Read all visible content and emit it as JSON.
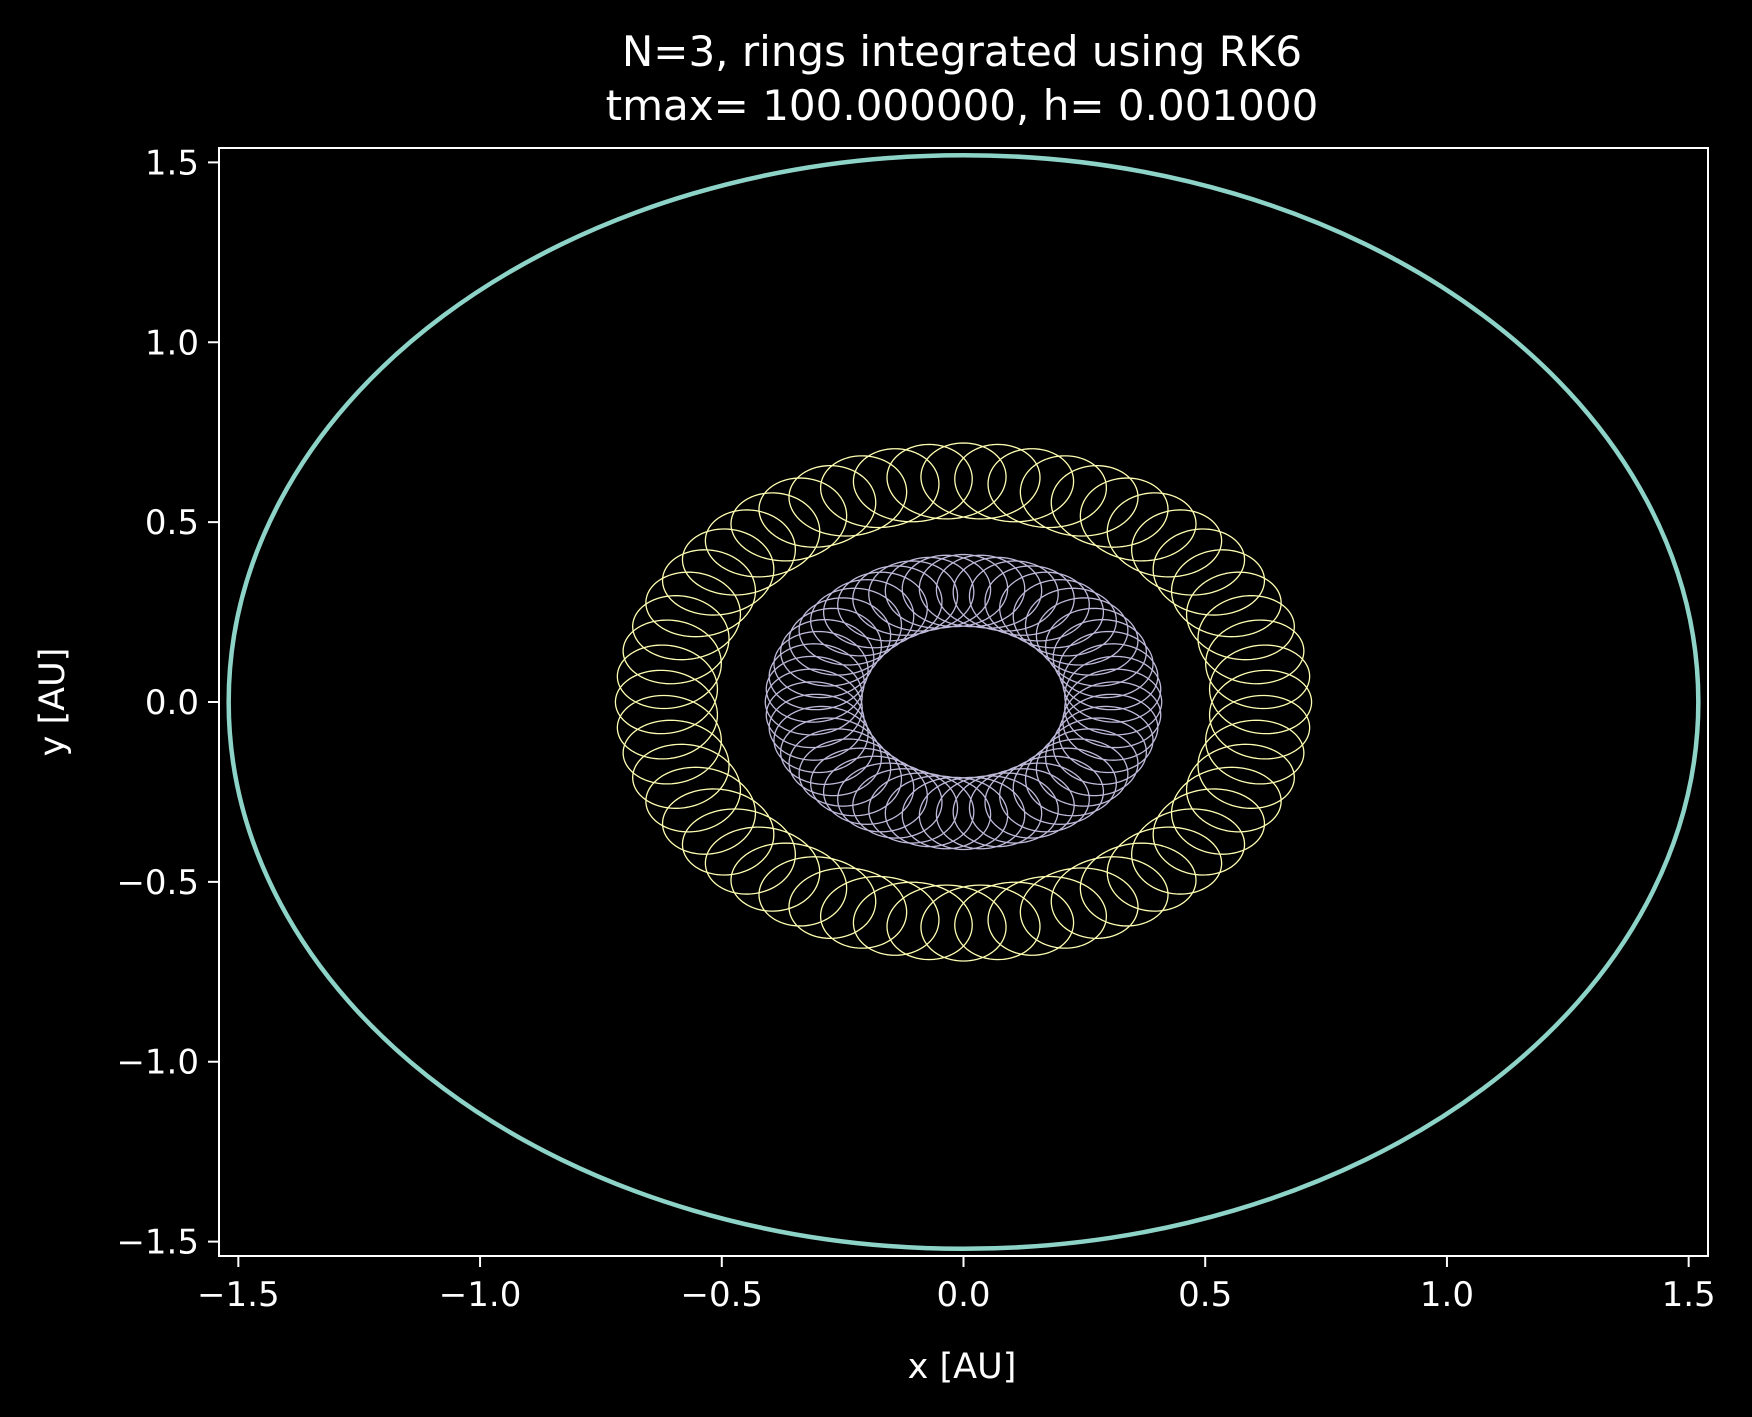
{
  "chart_data": {
    "type": "line",
    "title": "N=3, rings integrated using RK6",
    "subtitle": "tmax= 100.000000, h= 0.001000",
    "xlabel": "x [AU]",
    "ylabel": "y [AU]",
    "xlim": [
      -1.54,
      1.54
    ],
    "ylim": [
      -1.54,
      1.54
    ],
    "xticks": [
      -1.5,
      -1.0,
      -0.5,
      0.0,
      0.5,
      1.0,
      1.5
    ],
    "yticks": [
      -1.5,
      -1.0,
      -0.5,
      0.0,
      0.5,
      1.0,
      1.5
    ],
    "xtick_labels": [
      "−1.5",
      "−1.0",
      "−0.5",
      "0.0",
      "0.5",
      "1.0",
      "1.5"
    ],
    "ytick_labels": [
      "−1.5",
      "−1.0",
      "−0.5",
      "0.0",
      "0.5",
      "1.0",
      "1.5"
    ],
    "grid": false,
    "legend": "none",
    "background": "#000000",
    "series": [
      {
        "color": "#8dd3c7",
        "orbit": "circle",
        "radius": 1.52
      },
      {
        "color": "#ffffb3",
        "orbit": "rosette",
        "r_min": 0.51,
        "r_max": 0.72,
        "petals": 55
      },
      {
        "color": "#bebada",
        "orbit": "rosette",
        "r_min": 0.21,
        "r_max": 0.41,
        "petals": 55
      }
    ]
  }
}
